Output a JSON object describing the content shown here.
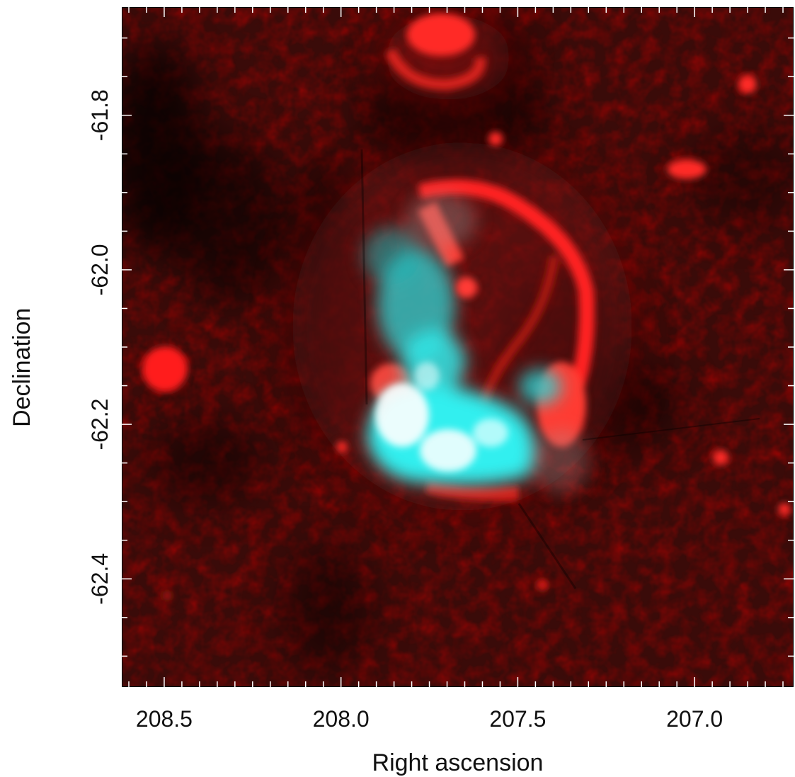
{
  "figure": {
    "xlabel": "Right ascension",
    "ylabel": "Declination",
    "x_ticks": [
      {
        "value": 208.5,
        "label": "208.5"
      },
      {
        "value": 208.0,
        "label": "208.0"
      },
      {
        "value": 207.5,
        "label": "207.5"
      },
      {
        "value": 207.0,
        "label": "207.0"
      }
    ],
    "y_ticks": [
      {
        "value": -61.8,
        "label": "-61.8"
      },
      {
        "value": -62.0,
        "label": "-62.0"
      },
      {
        "value": -62.2,
        "label": "-62.2"
      },
      {
        "value": -62.4,
        "label": "-62.4"
      }
    ],
    "x_range": [
      208.62,
      206.72
    ],
    "y_range": [
      -62.54,
      -61.66
    ],
    "minor_tick_step": 0.05,
    "colors": {
      "background": "#2a0807",
      "radio_emission": "#ff1a1a",
      "xray_emission": "#2ef0f0",
      "overlap": "#ffffff"
    }
  }
}
